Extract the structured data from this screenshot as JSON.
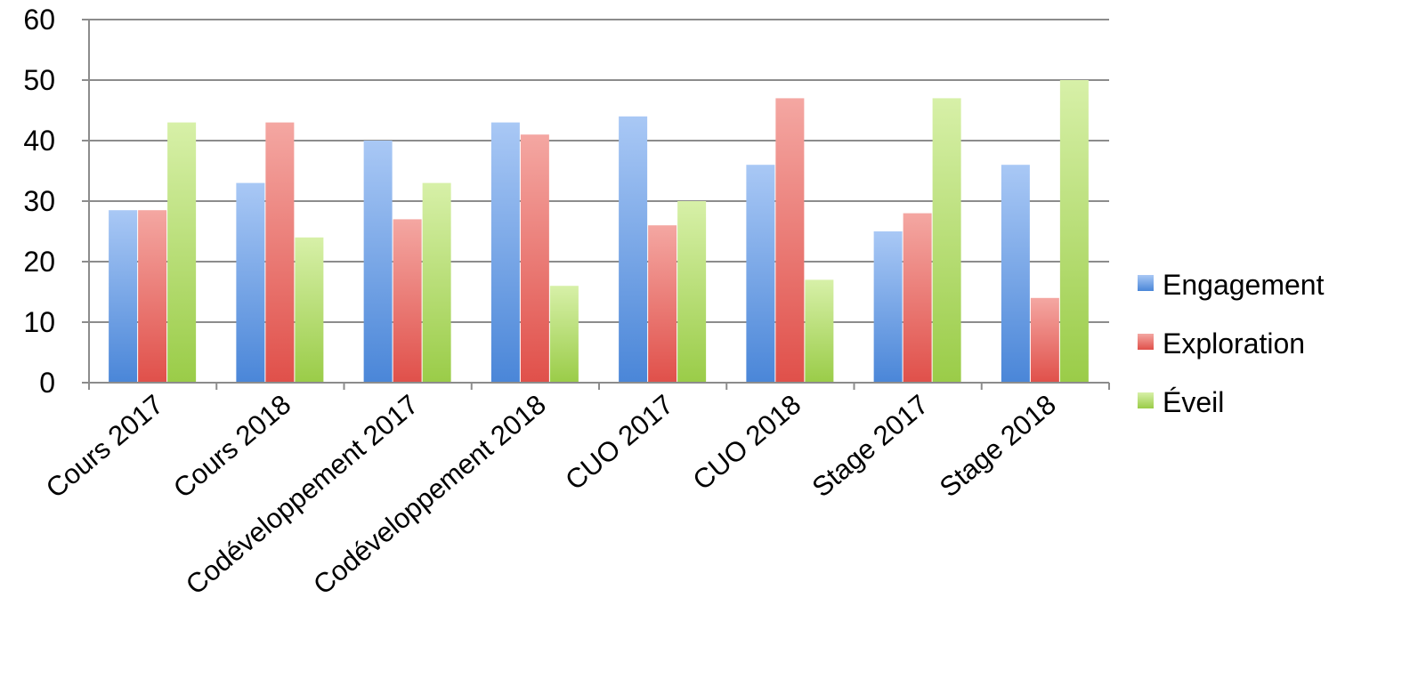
{
  "chart_data": {
    "type": "bar",
    "categories": [
      "Cours 2017",
      "Cours 2018",
      "Codéveloppement 2017",
      "Codéveloppement 2018",
      "CUO 2017",
      "CUO 2018",
      "Stage 2017",
      "Stage 2018"
    ],
    "series": [
      {
        "name": "Engagement",
        "values": [
          28.5,
          33,
          40,
          43,
          44,
          36,
          25,
          36
        ]
      },
      {
        "name": "Exploration",
        "values": [
          28.5,
          43,
          27,
          41,
          26,
          47,
          28,
          14
        ]
      },
      {
        "name": "Éveil",
        "values": [
          43,
          24,
          33,
          16,
          30,
          17,
          47,
          50
        ]
      }
    ],
    "title": "",
    "xlabel": "",
    "ylabel": "",
    "ylim": [
      0,
      60
    ],
    "yticks": [
      0,
      10,
      20,
      30,
      40,
      50,
      60
    ],
    "grid": true,
    "legend": "right",
    "colors": [
      "#4a86d8",
      "#e0504a",
      "#9acc48"
    ]
  }
}
